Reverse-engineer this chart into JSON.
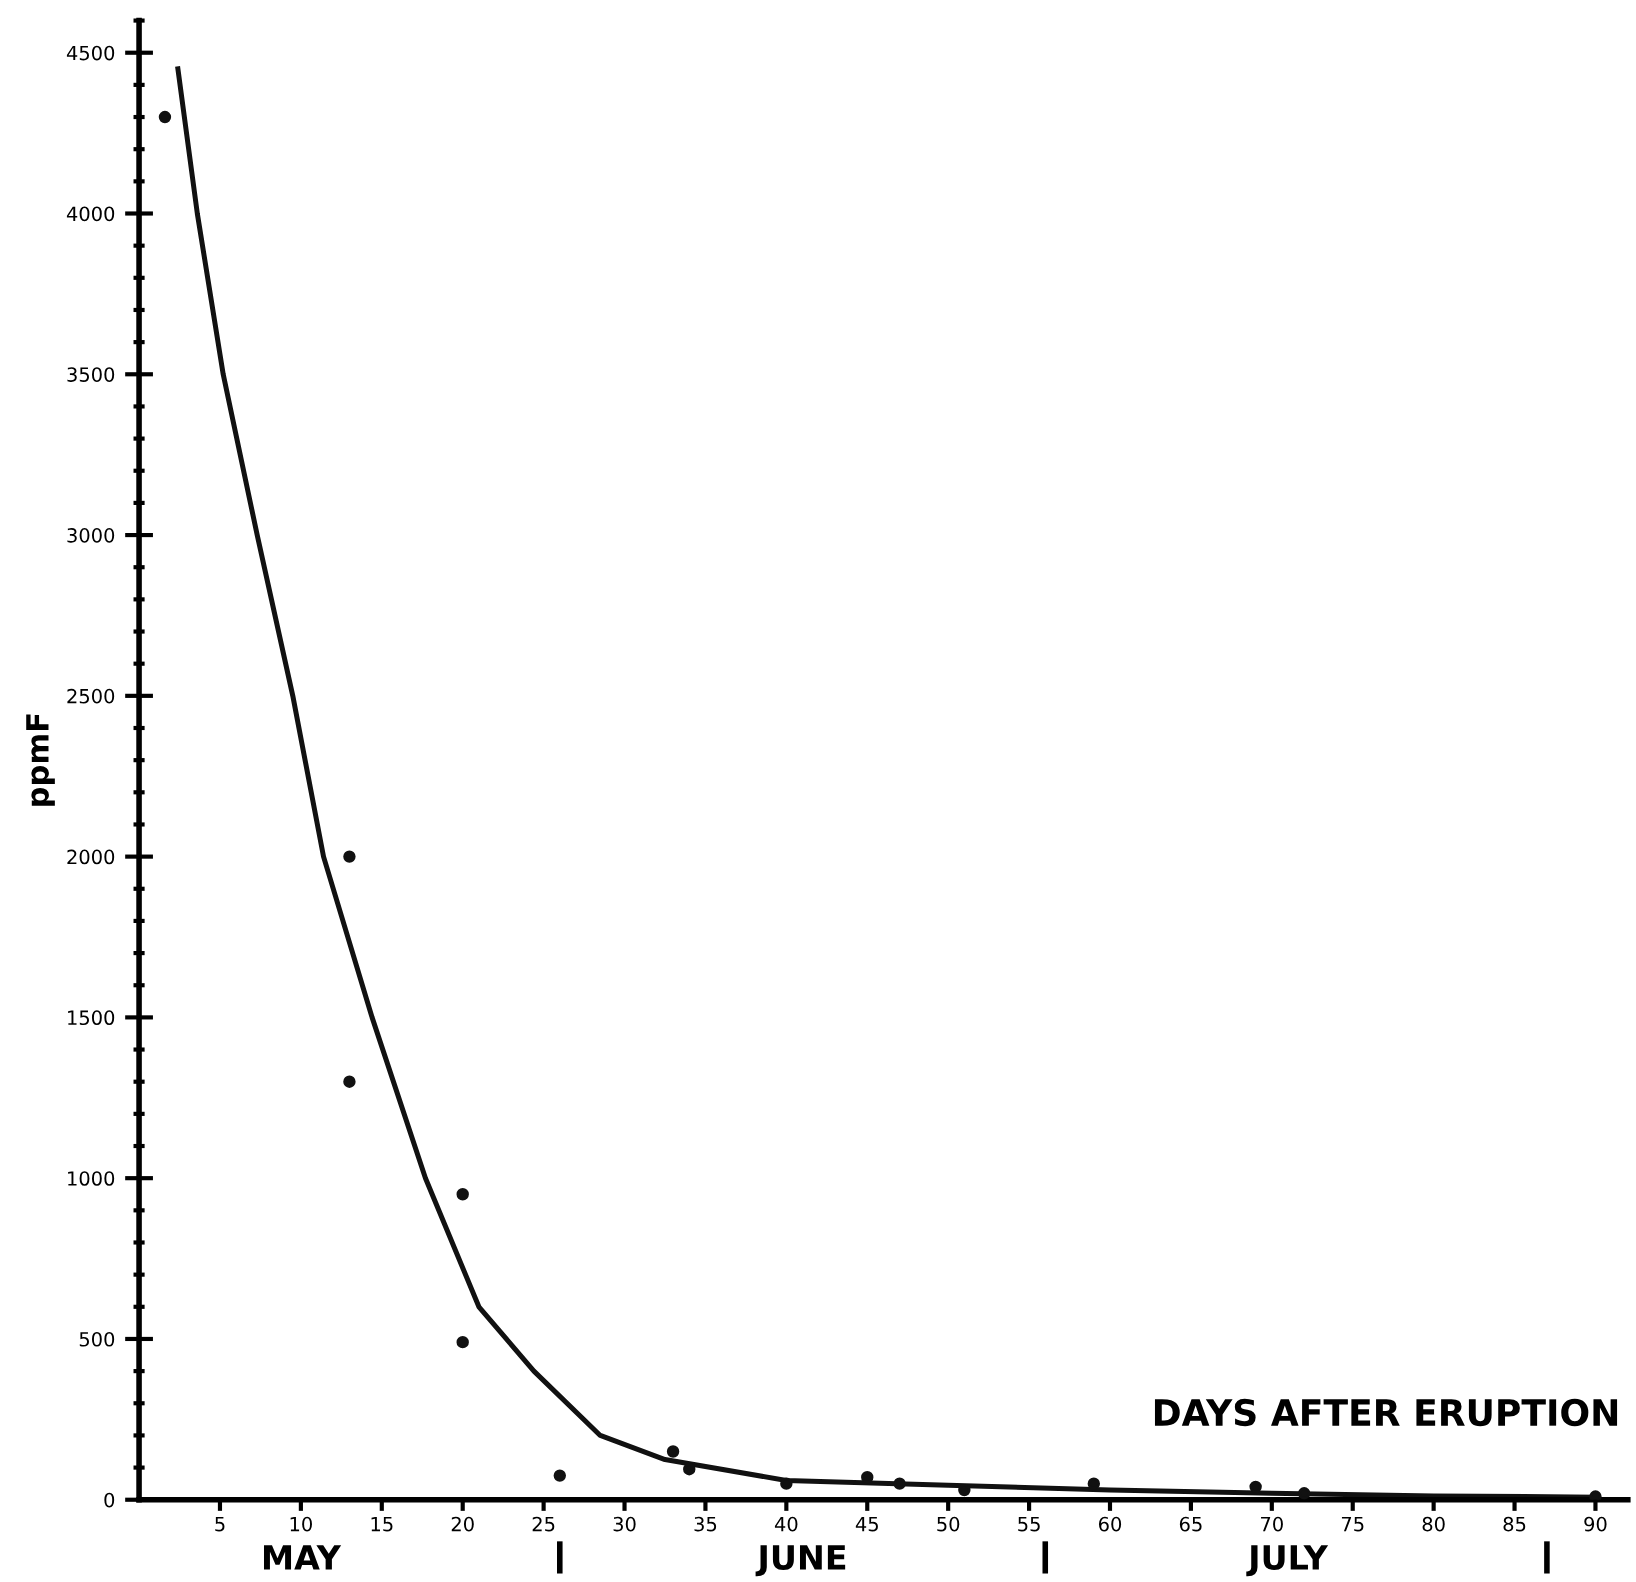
{
  "chart_data": {
    "type": "scatter",
    "xlabel": "DAYS AFTER ERUPTION",
    "ylabel": "ppmF",
    "annotations": [
      "MAY",
      "JUNE",
      "JULY"
    ],
    "series": [
      {
        "color": "#111111",
        "marker": "circle",
        "x": [
          1.6,
          13,
          13,
          20,
          20,
          26,
          33,
          34,
          40,
          45,
          47,
          51,
          59,
          69,
          72,
          90
        ],
        "values": [
          4300,
          2000,
          1300,
          950,
          490,
          75,
          150,
          95,
          50,
          70,
          50,
          30,
          50,
          40,
          20,
          10
        ]
      },
      {
        "type": "line",
        "color": "#111111",
        "line_style": "solid",
        "x": [
          2.4,
          3.6,
          5.2,
          7.3,
          9.5,
          11.4,
          14.4,
          17.7,
          21,
          24.4,
          28.5,
          32.5,
          40,
          50,
          60,
          70,
          80,
          90
        ],
        "values": [
          4450,
          4000,
          3500,
          3000,
          2500,
          2000,
          1500,
          1000,
          600,
          400,
          200,
          125,
          60,
          45,
          30,
          20,
          12,
          8
        ]
      }
    ],
    "xlim": [
      0,
      92
    ],
    "xticks": [
      5,
      10,
      15,
      20,
      25,
      30,
      35,
      40,
      45,
      50,
      55,
      60,
      65,
      70,
      75,
      80,
      85,
      90
    ],
    "ylim": [
      0,
      4600
    ],
    "yticks": [
      0,
      500,
      1000,
      1500,
      2000,
      2500,
      3000,
      3500,
      4000,
      4500
    ],
    "grid": false,
    "legend": false
  }
}
